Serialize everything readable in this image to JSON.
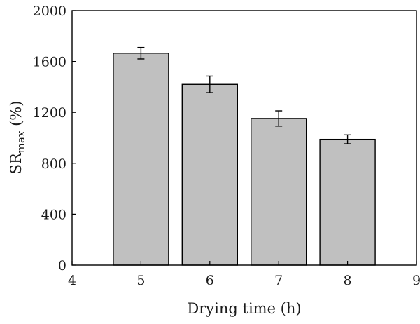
{
  "chart_data": {
    "type": "bar",
    "title": "",
    "xlabel": "Drying time (h)",
    "ylabel": {
      "base": "SR",
      "sub": "max",
      "suffix": " (%)"
    },
    "x": [
      5,
      6,
      7,
      8
    ],
    "values": [
      1665,
      1420,
      1152,
      988
    ],
    "errors": [
      45,
      65,
      60,
      35
    ],
    "xlim": [
      4,
      9
    ],
    "ylim": [
      0,
      2000
    ],
    "xticks": [
      4,
      5,
      6,
      7,
      8,
      9
    ],
    "yticks": [
      0,
      400,
      800,
      1200,
      1600,
      2000
    ],
    "grid": false,
    "bar_color": "#c0c0c0",
    "edge_color": "#000000"
  }
}
